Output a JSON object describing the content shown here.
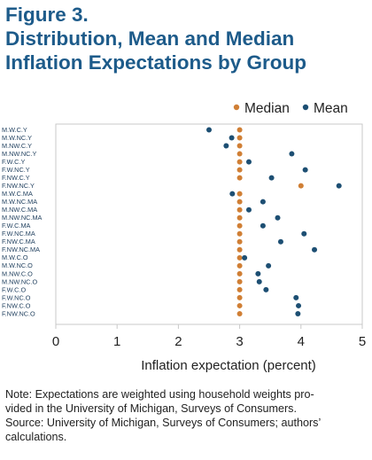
{
  "figure": {
    "label": "Figure 3.",
    "title_line1": "Distribution, Mean and Median",
    "title_line2": "Inflation Expectations by Group"
  },
  "chart_data": {
    "type": "scatter",
    "xlabel": "Inflation expectation (percent)",
    "xlim": [
      0,
      5
    ],
    "xticks": [
      0,
      1,
      2,
      3,
      4,
      5
    ],
    "grid": false,
    "legend": {
      "placement": "top-right"
    },
    "categories": [
      "M.W.C.Y",
      "M.W.NC.Y",
      "M.NW.C.Y",
      "M.NW.NC.Y",
      "F.W.C.Y",
      "F.W.NC.Y",
      "F.NW.C.Y",
      "F.NW.NC.Y",
      "M.W.C.MA",
      "M.W.NC.MA",
      "M.NW.C.MA",
      "M.NW.NC.MA",
      "F.W.C.MA",
      "F.W.NC.MA",
      "F.NW.C.MA",
      "F.NW.NC.MA",
      "M.W.C.O",
      "M.W.NC.O",
      "M.NW.C.O",
      "M.NW.NC.O",
      "F.W.C.O",
      "F.W.NC.O",
      "F.NW.C.O",
      "F.NW.NC.O"
    ],
    "series": [
      {
        "name": "Median",
        "color": "#d07f35",
        "values": [
          3,
          3,
          3,
          3,
          3,
          3,
          3,
          4,
          3,
          3,
          3,
          3,
          3,
          3,
          3,
          3,
          3,
          3,
          3,
          3,
          3,
          3,
          3,
          3
        ]
      },
      {
        "name": "Mean",
        "color": "#1d4f73",
        "values": [
          2.5,
          2.87,
          2.78,
          3.85,
          3.15,
          4.07,
          3.52,
          4.62,
          2.88,
          3.38,
          3.15,
          3.62,
          3.38,
          4.05,
          3.67,
          4.22,
          3.08,
          3.47,
          3.3,
          3.32,
          3.43,
          3.92,
          3.96,
          3.95
        ]
      }
    ]
  },
  "note": {
    "line1": "Note: Expectations are weighted using household weights pro-",
    "line2": "vided in the University of Michigan, Surveys of Consumers.",
    "line3": "Source: University of Michigan, Surveys of Consumers; authors’",
    "line4": "calculations."
  }
}
